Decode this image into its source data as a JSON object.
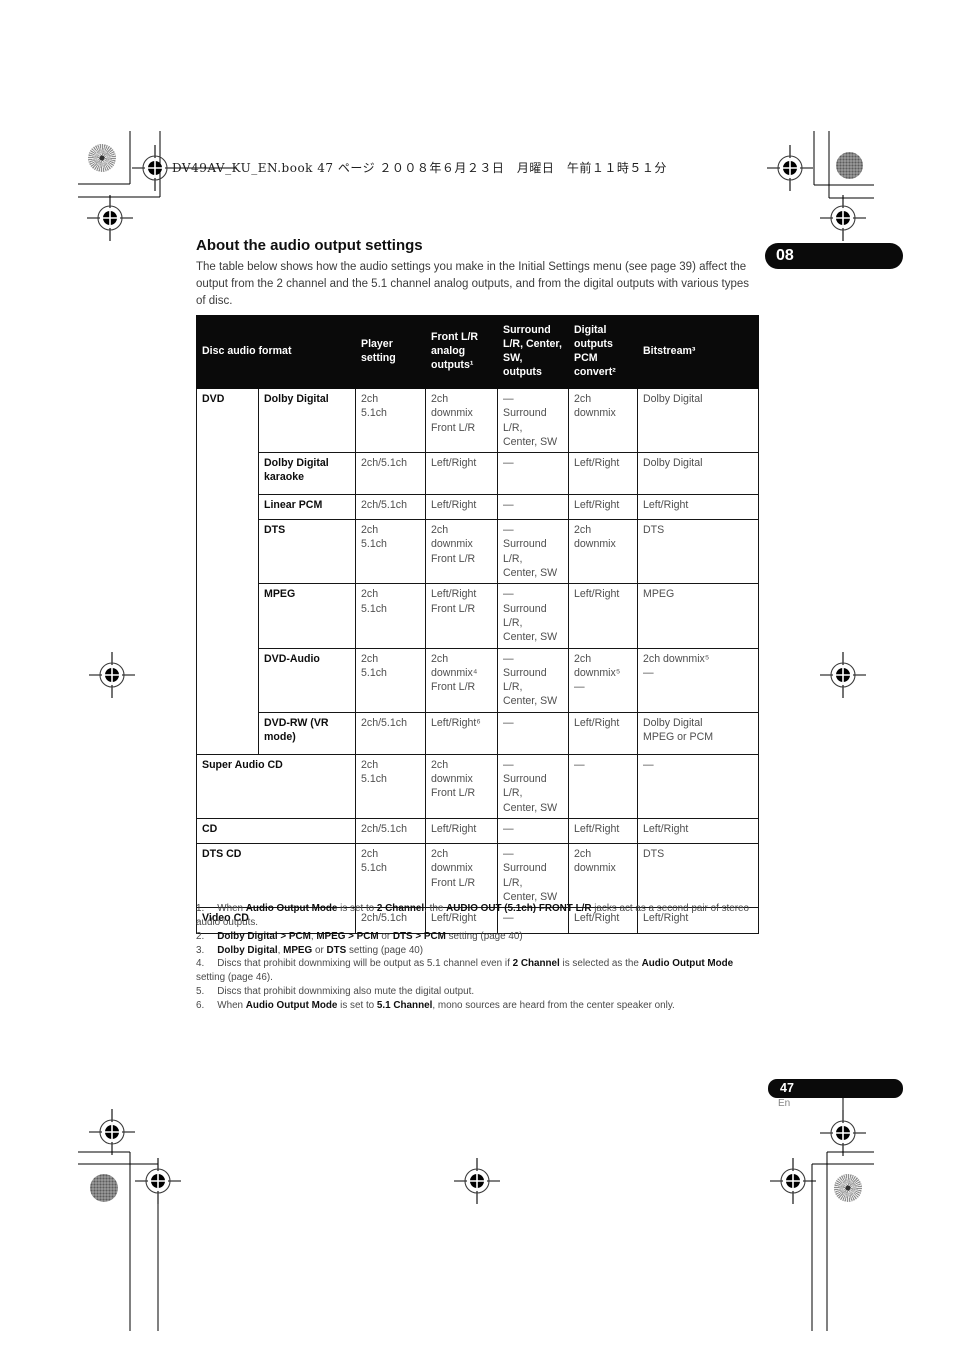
{
  "page": {
    "header_meta": "DV49AV_KU_EN.book  47 ページ  ２００８年６月２３日　月曜日　午前１１時５１分",
    "chapter_tab": "08",
    "page_number": "47",
    "language": "En"
  },
  "section": {
    "title": "About the audio output settings",
    "intro": "The table below shows how the audio settings you make in the Initial Settings menu (see page 39) affect the output from the 2 channel and the 5.1 channel analog outputs, and from the digital outputs with various types of disc."
  },
  "table": {
    "header": {
      "disc_audio_format": "Disc audio format",
      "player_setting": "Player\nsetting",
      "front_lr": "Front L/R\nanalog\noutputs¹",
      "surround": "Surround\nL/R, Center,\nSW,\noutputs",
      "digital": "Digital\noutputs\nPCM\nconvert²",
      "bitstream": "Bitstream³"
    },
    "rows": [
      {
        "group": "DVD",
        "format": "Dolby Digital",
        "player": "2ch\n5.1ch",
        "front": "2ch downmix\nFront L/R",
        "surround": "—\nSurround L/R,\nCenter, SW",
        "digital": "2ch downmix",
        "bitstream": "Dolby Digital"
      },
      {
        "format": "Dolby Digital\nkaraoke",
        "player": "2ch/5.1ch",
        "front": "Left/Right",
        "surround": "—",
        "digital": "Left/Right",
        "bitstream": "Dolby Digital"
      },
      {
        "format": "Linear PCM",
        "player": "2ch/5.1ch",
        "front": "Left/Right",
        "surround": "—",
        "digital": "Left/Right",
        "bitstream": "Left/Right"
      },
      {
        "format": "DTS",
        "player": "2ch\n5.1ch",
        "front": "2ch downmix\nFront L/R",
        "surround": "—\nSurround L/R,\nCenter, SW",
        "digital": "2ch downmix",
        "bitstream": "DTS"
      },
      {
        "format": "MPEG",
        "player": "2ch\n5.1ch",
        "front": "Left/Right\nFront L/R",
        "surround": "—\nSurround L/R,\nCenter, SW",
        "digital": "Left/Right",
        "bitstream": "MPEG"
      },
      {
        "format": "DVD-Audio",
        "player": "2ch\n5.1ch",
        "front": "2ch downmix⁴\nFront L/R",
        "surround": "—\nSurround L/R,\nCenter, SW",
        "digital": "2ch downmix⁵\n—",
        "bitstream": "2ch downmix⁵\n—"
      },
      {
        "format": "DVD-RW (VR\nmode)",
        "player": "2ch/5.1ch",
        "front": "Left/Right⁶",
        "surround": "—",
        "digital": "Left/Right",
        "bitstream": "Dolby Digital\nMPEG or PCM"
      },
      {
        "wide": "Super Audio CD",
        "player": "2ch\n5.1ch",
        "front": "2ch downmix\nFront L/R",
        "surround": "—\nSurround L/R,\nCenter, SW",
        "digital": "—",
        "bitstream": "—"
      },
      {
        "wide": "CD",
        "player": "2ch/5.1ch",
        "front": "Left/Right",
        "surround": "—",
        "digital": "Left/Right",
        "bitstream": "Left/Right"
      },
      {
        "wide": "DTS CD",
        "player": "2ch\n5.1ch",
        "front": "2ch downmix\nFront L/R",
        "surround": "—\nSurround L/R,\nCenter, SW",
        "digital": "2ch downmix",
        "bitstream": "DTS"
      },
      {
        "wide": "Video CD",
        "player": "2ch/5.1ch",
        "front": "Left/Right",
        "surround": "—",
        "digital": "Left/Right",
        "bitstream": "Left/Right"
      }
    ]
  },
  "footnotes": [
    {
      "num": "1.",
      "segments": [
        "When ",
        "Audio Output Mode",
        " is set to ",
        "2 Channel",
        ", the ",
        "AUDIO OUT (5.1ch) FRONT L/R",
        " jacks act as a second pair of stereo audio outputs."
      ]
    },
    {
      "num": "2.",
      "segments": [
        "",
        "Dolby Digital > PCM",
        ", ",
        "MPEG > PCM",
        " or ",
        "DTS > PCM",
        " setting (page 40)"
      ]
    },
    {
      "num": "3.",
      "segments": [
        "",
        "Dolby Digital",
        ", ",
        "MPEG",
        " or ",
        "DTS",
        " setting (page 40)"
      ]
    },
    {
      "num": "4.",
      "segments": [
        "Discs that prohibit downmixing will be output as 5.1 channel even if ",
        "2 Channel",
        " is selected as the ",
        "Audio Output Mode",
        " setting (page 46)."
      ]
    },
    {
      "num": "5.",
      "segments": [
        "Discs that prohibit downmixing also mute the digital output."
      ]
    },
    {
      "num": "6.",
      "segments": [
        "When ",
        "Audio Output Mode",
        " is set to ",
        "5.1 Channel",
        ", mono sources are heard from the center speaker only."
      ]
    }
  ],
  "colors": {
    "table_header_bg": "#0a0a0a",
    "badge_bg": "#0a0a0a",
    "body_text": "#4f4f4f",
    "emphasis_text": "#101010"
  }
}
